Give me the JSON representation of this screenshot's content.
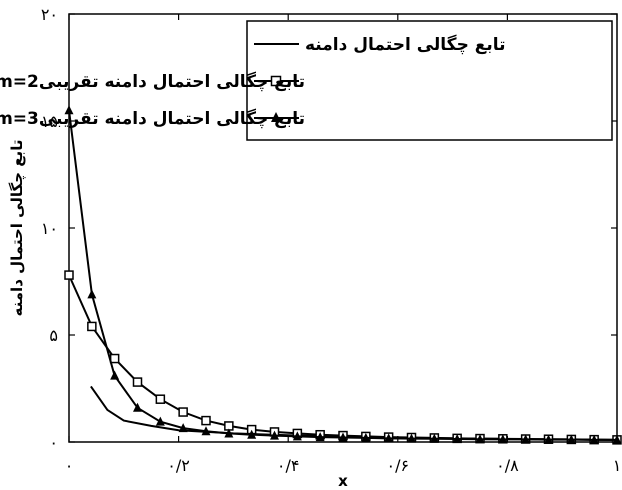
{
  "chart_data": {
    "type": "line",
    "title": "",
    "xlabel": "x",
    "ylabel": "تابع چگالی احتمال دامنه",
    "xlim": [
      0,
      1
    ],
    "ylim": [
      0,
      20
    ],
    "xticks": [
      0,
      0.2,
      0.4,
      0.6,
      0.8,
      1
    ],
    "xtick_labels": [
      "۰",
      "۰/۲",
      "۰/۴",
      "۰/۶",
      "۰/۸",
      "۱"
    ],
    "yticks": [
      0,
      5,
      10,
      15,
      20
    ],
    "ytick_labels": [
      "۰",
      "۵",
      "۱۰",
      "۱۵",
      "۲۰"
    ],
    "grid": false,
    "legend_position": "top-right",
    "series": [
      {
        "name": "تابع چگالی احتمال دامنه",
        "marker": "none",
        "x": [
          0.04,
          0.07,
          0.1,
          0.15,
          0.2,
          0.3,
          0.4,
          0.5,
          0.6,
          0.7,
          0.8,
          0.9,
          1.0
        ],
        "y": [
          2.6,
          1.5,
          1.0,
          0.75,
          0.55,
          0.4,
          0.32,
          0.25,
          0.2,
          0.17,
          0.14,
          0.12,
          0.1
        ]
      },
      {
        "name": "تابع چگالی احتمال دامنه تقریبی",
        "name_prefix": "m=2،",
        "marker": "square",
        "x": [
          0,
          0.0417,
          0.0833,
          0.125,
          0.1667,
          0.2083,
          0.25,
          0.2917,
          0.3333,
          0.375,
          0.4167,
          0.4583,
          0.5,
          0.5417,
          0.5833,
          0.625,
          0.6667,
          0.7083,
          0.75,
          0.7917,
          0.8333,
          0.875,
          0.9167,
          0.9583,
          1.0
        ],
        "y": [
          7.8,
          5.4,
          3.9,
          2.8,
          2.0,
          1.4,
          1.0,
          0.75,
          0.58,
          0.47,
          0.4,
          0.34,
          0.3,
          0.26,
          0.23,
          0.21,
          0.19,
          0.17,
          0.16,
          0.15,
          0.14,
          0.13,
          0.12,
          0.11,
          0.1
        ]
      },
      {
        "name": "تابع چگالی احتمال دامنه تقریبی",
        "name_prefix": "m=3،",
        "marker": "triangle",
        "x": [
          0,
          0.0417,
          0.0833,
          0.125,
          0.1667,
          0.2083,
          0.25,
          0.2917,
          0.3333,
          0.375,
          0.4167,
          0.4583,
          0.5,
          0.5417,
          0.5833,
          0.625,
          0.6667,
          0.7083,
          0.75,
          0.7917,
          0.8333,
          0.875,
          0.9167,
          0.9583,
          1.0
        ],
        "y": [
          15.5,
          6.9,
          3.1,
          1.6,
          0.95,
          0.65,
          0.5,
          0.4,
          0.34,
          0.3,
          0.26,
          0.23,
          0.21,
          0.19,
          0.17,
          0.16,
          0.15,
          0.14,
          0.13,
          0.12,
          0.12,
          0.11,
          0.11,
          0.1,
          0.1
        ]
      }
    ]
  }
}
